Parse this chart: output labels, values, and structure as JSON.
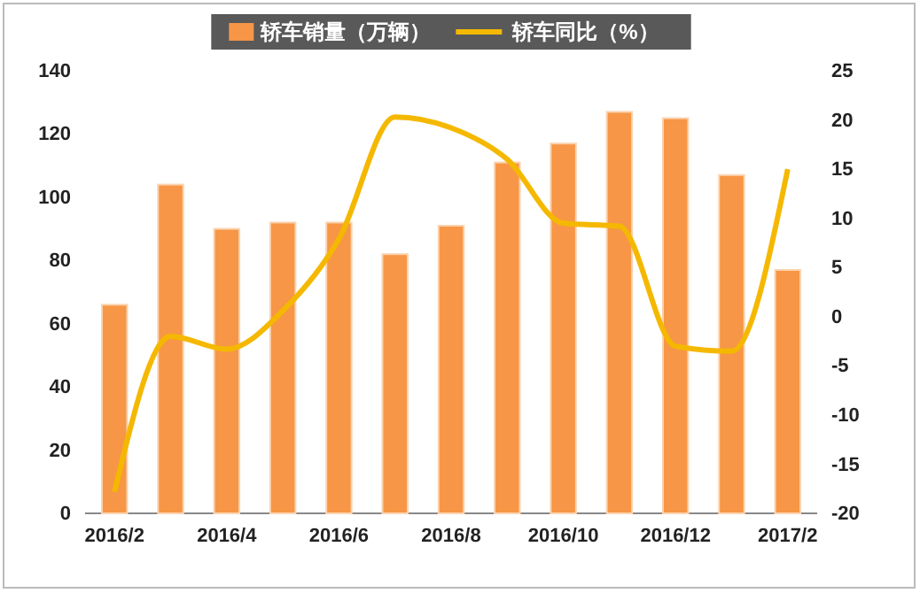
{
  "chart_data": {
    "type": "bar",
    "categories": [
      "2016/2",
      null,
      "2016/4",
      null,
      "2016/6",
      null,
      "2016/8",
      null,
      "2016/10",
      null,
      "2016/12",
      null,
      "2017/2"
    ],
    "series": [
      {
        "name": "轿车销量（万辆）",
        "color": "#f79646",
        "values": [
          66,
          104,
          90,
          92,
          92,
          82,
          91,
          111,
          117,
          127,
          125,
          107,
          77
        ]
      },
      {
        "name": "轿车同比（%）",
        "type": "line",
        "axis": "y2",
        "color": "#f5b800",
        "values": [
          -17.8,
          -2,
          -3.3,
          0.6,
          7.9,
          20.3,
          19.2,
          16,
          9.5,
          9.2,
          -3,
          -3.5,
          15
        ]
      }
    ],
    "ylim": [
      0,
      140
    ],
    "yticks": [
      0,
      20,
      40,
      60,
      80,
      100,
      120,
      140
    ],
    "y2lim": [
      -20,
      25
    ],
    "y2ticks": [
      -20,
      -15,
      -10,
      -5,
      0,
      5,
      10,
      15,
      20,
      25
    ],
    "legend": "top",
    "grid": false,
    "marker": "none",
    "line_style": "solid"
  }
}
